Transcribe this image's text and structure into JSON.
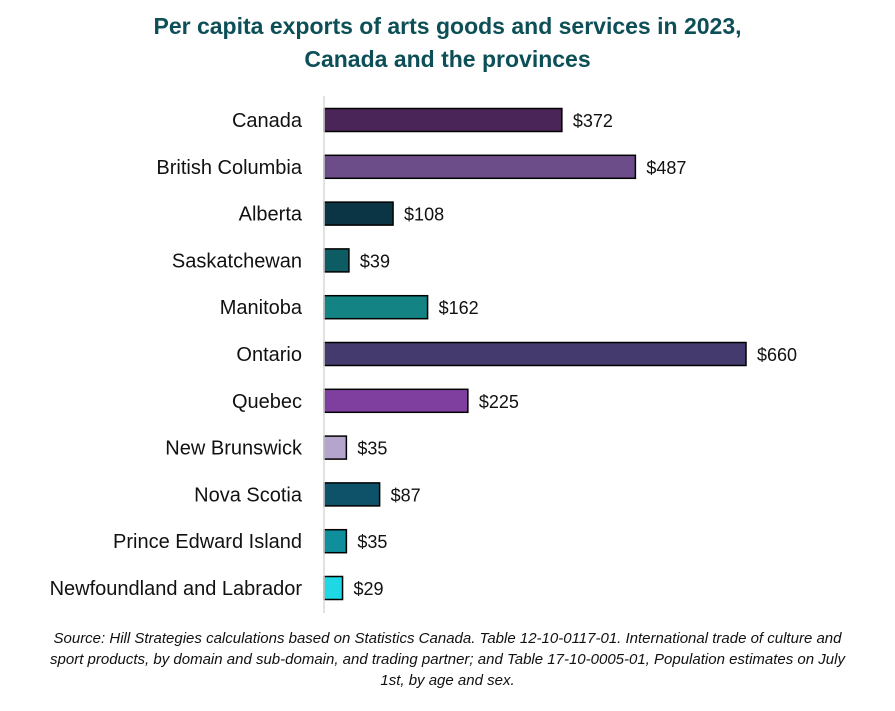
{
  "chart_data": {
    "type": "bar",
    "orientation": "horizontal",
    "title_line1": "Per capita exports of arts goods and services in 2023,",
    "title_line2": "Canada and the provinces",
    "categories": [
      "Canada",
      "British Columbia",
      "Alberta",
      "Saskatchewan",
      "Manitoba",
      "Ontario",
      "Quebec",
      "New Brunswick",
      "Nova Scotia",
      "Prince Edward Island",
      "Newfoundland and Labrador"
    ],
    "values": [
      372,
      487,
      108,
      39,
      162,
      660,
      225,
      35,
      87,
      35,
      29
    ],
    "value_labels": [
      "$372",
      "$487",
      "$108",
      "$39",
      "$162",
      "$660",
      "$225",
      "$35",
      "$87",
      "$35",
      "$29"
    ],
    "colors": [
      "#4a2558",
      "#6d4d89",
      "#0b3544",
      "#0d5b63",
      "#138383",
      "#443a6e",
      "#7e3f9e",
      "#b5a5cc",
      "#0d5268",
      "#0f8e9b",
      "#1ed8e4"
    ],
    "xlim": [
      0,
      660
    ],
    "grid": false,
    "legend": "none"
  },
  "source_note": "Source:  Hill Strategies calculations based on Statistics Canada. Table 12-10-0117-01. International trade of culture and sport products, by domain and sub-domain, and trading partner; and Table 17-10-0005-01, Population estimates on July 1st, by age and sex."
}
